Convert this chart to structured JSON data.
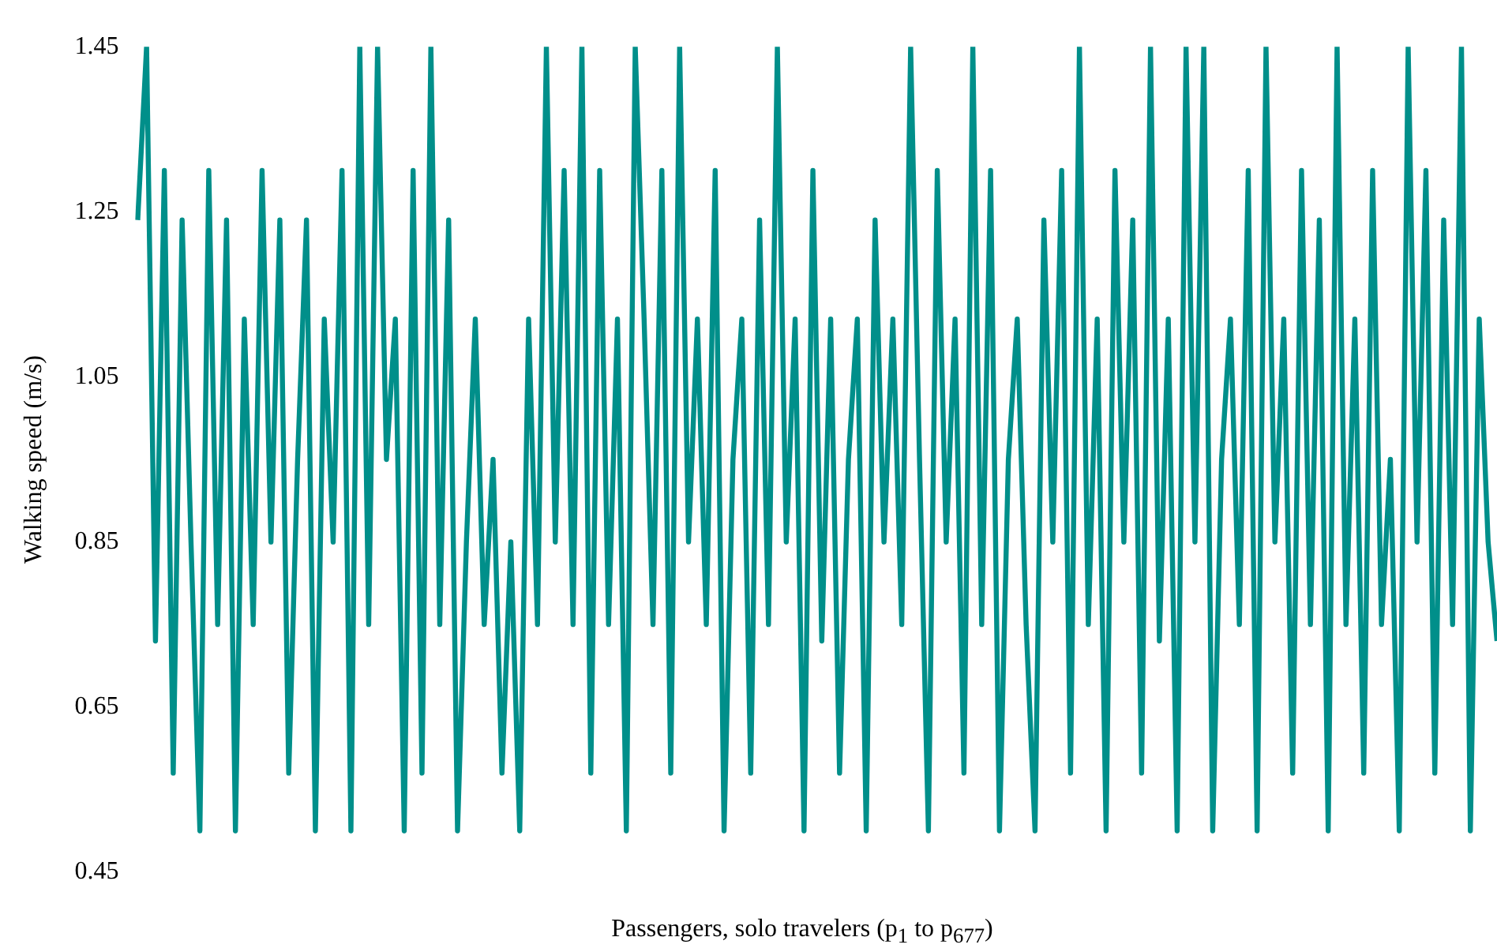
{
  "chart_data": {
    "type": "line",
    "xlabel": "Passengers, solo travelers (p$_{1}$ to p$_{677}$)",
    "ylabel": "Walking speed (m/s)",
    "categories": [
      null,
      null,
      null,
      null,
      null,
      null,
      null,
      null,
      null,
      null,
      null,
      null,
      null,
      null,
      null,
      null,
      null,
      null,
      null,
      null,
      null,
      null,
      null,
      null,
      null,
      null,
      null,
      null,
      null,
      null,
      null,
      null,
      null,
      null,
      null,
      null,
      null,
      null,
      null,
      null,
      null,
      null,
      null,
      null,
      null,
      null,
      null,
      null,
      null,
      null,
      null,
      null,
      null,
      null,
      null,
      null,
      null,
      null,
      null,
      null,
      null,
      null,
      null,
      null,
      null,
      null,
      null,
      null,
      null,
      null,
      null,
      null,
      null,
      null,
      null,
      null,
      null,
      null,
      null,
      null,
      null,
      null,
      null,
      null,
      null,
      null,
      null,
      null,
      null,
      null,
      null,
      null,
      null,
      null,
      null,
      null,
      null,
      null,
      null,
      null,
      null,
      null,
      null,
      null,
      null,
      null,
      null,
      null,
      null,
      null,
      null,
      null,
      null,
      null,
      null,
      null,
      null,
      null,
      null,
      null,
      null,
      null,
      null,
      null,
      null,
      null,
      null,
      null,
      null,
      null,
      null,
      null,
      null,
      null,
      null,
      null,
      null,
      null,
      null,
      null,
      null,
      null,
      null,
      null,
      null,
      null,
      null,
      null,
      null,
      null,
      null,
      null,
      null,
      null
    ],
    "series": [
      {
        "color": "#008f8a",
        "values": [
          1.24,
          1.45,
          0.73,
          1.3,
          0.57,
          1.24,
          0.85,
          0.5,
          1.3,
          0.75,
          1.24,
          0.5,
          1.12,
          0.75,
          1.3,
          0.85,
          1.24,
          0.57,
          0.95,
          1.24,
          0.5,
          1.12,
          0.85,
          1.3,
          0.5,
          1.45,
          0.75,
          1.45,
          0.95,
          1.12,
          0.5,
          1.3,
          0.57,
          1.45,
          0.75,
          1.24,
          0.5,
          0.85,
          1.12,
          0.75,
          0.95,
          0.57,
          0.85,
          0.5,
          1.12,
          0.75,
          1.45,
          0.85,
          1.3,
          0.75,
          1.45,
          0.57,
          1.3,
          0.75,
          1.12,
          0.5,
          1.45,
          1.12,
          0.75,
          1.3,
          0.57,
          1.45,
          0.85,
          1.12,
          0.75,
          1.3,
          0.5,
          0.95,
          1.12,
          0.57,
          1.24,
          0.75,
          1.45,
          0.85,
          1.12,
          0.5,
          1.3,
          0.73,
          1.12,
          0.57,
          0.95,
          1.12,
          0.5,
          1.24,
          0.85,
          1.12,
          0.75,
          1.45,
          0.95,
          0.5,
          1.3,
          0.85,
          1.12,
          0.57,
          1.45,
          0.75,
          1.3,
          0.5,
          0.95,
          1.12,
          0.75,
          0.5,
          1.24,
          0.85,
          1.3,
          0.57,
          1.45,
          0.75,
          1.12,
          0.5,
          1.3,
          0.85,
          1.24,
          0.57,
          1.45,
          0.73,
          1.12,
          0.5,
          1.45,
          0.85,
          1.45,
          0.5,
          0.95,
          1.12,
          0.75,
          1.3,
          0.5,
          1.45,
          0.85,
          1.12,
          0.57,
          1.3,
          0.75,
          1.24,
          0.5,
          1.45,
          0.75,
          1.12,
          0.57,
          1.3,
          0.75,
          0.95,
          0.5,
          1.45,
          0.85,
          1.3,
          0.57,
          1.24,
          0.75,
          1.45,
          0.5,
          1.12,
          0.85,
          0.73
        ]
      }
    ],
    "ylim": [
      0.45,
      1.45
    ],
    "yticks": [
      0.45,
      0.65,
      0.85,
      1.05,
      1.25,
      1.45
    ],
    "grid": false,
    "legend": false,
    "marker": "none",
    "line_style": "solid",
    "tick_labels": "y"
  }
}
